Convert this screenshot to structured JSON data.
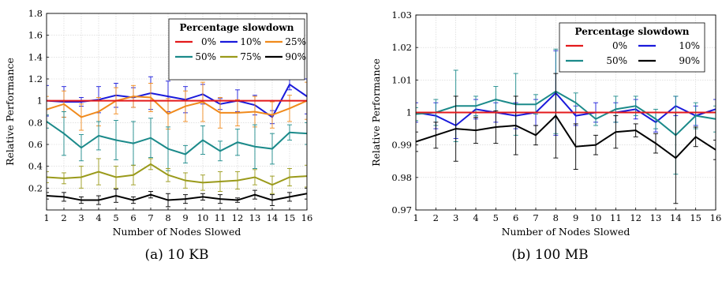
{
  "captions": [
    "(a) 10 KB",
    "(b) 100 MB"
  ],
  "chart_data": [
    {
      "type": "line",
      "xlabel": "Number of Nodes Slowed",
      "ylabel": "Relative Performance",
      "ylim": [
        0,
        1.8
      ],
      "yticks": [
        "0.2",
        "0.4",
        "0.6",
        "0.8",
        "1",
        "1.2",
        "1.4",
        "1.6",
        "1.8"
      ],
      "x": [
        1,
        2,
        3,
        4,
        5,
        6,
        7,
        8,
        9,
        10,
        11,
        12,
        13,
        14,
        15,
        16
      ],
      "legend_title": "Percentage slowdown",
      "legend_position": "top-right",
      "grid": true,
      "series": [
        {
          "name": "0%",
          "color": "#e31a1c",
          "values": [
            1,
            1,
            1,
            1,
            1,
            1,
            1,
            1,
            1,
            1,
            1,
            1,
            1,
            1,
            1,
            1
          ],
          "err": [
            0,
            0,
            0,
            0,
            0,
            0,
            0,
            0,
            0,
            0,
            0,
            0,
            0,
            0,
            0,
            0
          ]
        },
        {
          "name": "10%",
          "color": "#1a1adb",
          "values": [
            1.0,
            0.99,
            0.99,
            1.01,
            1.05,
            1.03,
            1.07,
            1.04,
            1.01,
            1.06,
            0.97,
            1.0,
            0.96,
            0.85,
            1.15,
            1.04
          ],
          "err": [
            0.14,
            0.14,
            0.04,
            0.12,
            0.11,
            0.09,
            0.15,
            0.14,
            0.12,
            0.09,
            0.05,
            0.1,
            0.09,
            0.06,
            0.05,
            0.16
          ]
        },
        {
          "name": "25%",
          "color": "#f08a1c",
          "values": [
            0.92,
            0.97,
            0.85,
            0.9,
            1.0,
            1.04,
            1.03,
            0.88,
            0.95,
            0.99,
            0.89,
            0.89,
            0.9,
            0.87,
            0.93,
            1.0
          ],
          "err": [
            0.12,
            0.12,
            0.12,
            0.13,
            0.12,
            0.1,
            0.13,
            0.14,
            0.14,
            0.18,
            0.14,
            0.12,
            0.14,
            0.12,
            0.12,
            0.17
          ]
        },
        {
          "name": "50%",
          "color": "#1b8a8a",
          "values": [
            0.81,
            0.7,
            0.57,
            0.68,
            0.64,
            0.61,
            0.66,
            0.56,
            0.51,
            0.64,
            0.54,
            0.62,
            0.58,
            0.56,
            0.71,
            0.7
          ],
          "err": [
            0.06,
            0.2,
            0.12,
            0.13,
            0.18,
            0.2,
            0.18,
            0.2,
            0.08,
            0.13,
            0.09,
            0.12,
            0.2,
            0.14,
            0.07,
            0.1
          ]
        },
        {
          "name": "75%",
          "color": "#9a9a1a",
          "values": [
            0.3,
            0.29,
            0.3,
            0.35,
            0.3,
            0.32,
            0.42,
            0.32,
            0.27,
            0.25,
            0.26,
            0.27,
            0.3,
            0.23,
            0.3,
            0.31
          ],
          "err": [
            0.05,
            0.05,
            0.1,
            0.12,
            0.1,
            0.09,
            0.05,
            0.06,
            0.07,
            0.07,
            0.09,
            0.08,
            0.07,
            0.08,
            0.08,
            0.1
          ]
        },
        {
          "name": "90%",
          "color": "#000000",
          "values": [
            0.13,
            0.12,
            0.09,
            0.09,
            0.13,
            0.09,
            0.14,
            0.09,
            0.1,
            0.12,
            0.1,
            0.09,
            0.14,
            0.09,
            0.12,
            0.15
          ],
          "err": [
            0.03,
            0.04,
            0.03,
            0.04,
            0.06,
            0.03,
            0.03,
            0.06,
            0.04,
            0.03,
            0.04,
            0.02,
            0.04,
            0.05,
            0.04,
            0.05
          ]
        }
      ]
    },
    {
      "type": "line",
      "xlabel": "Number of Nodes Slowed",
      "ylabel": "Relative Performance",
      "ylim": [
        0.97,
        1.03
      ],
      "yticks": [
        "0.97",
        "0.98",
        "0.99",
        "1",
        "1.01",
        "1.02",
        "1.03"
      ],
      "x": [
        1,
        2,
        3,
        4,
        5,
        6,
        7,
        8,
        9,
        10,
        11,
        12,
        13,
        14,
        15,
        16
      ],
      "legend_title": "Percentage slowdown",
      "legend_position": "top-right",
      "grid": true,
      "series": [
        {
          "name": "0%",
          "color": "#e31a1c",
          "values": [
            1,
            1,
            1,
            1,
            1,
            1,
            1,
            1,
            1,
            1,
            1,
            1,
            1,
            1,
            1,
            1
          ],
          "err": [
            0,
            0,
            0,
            0,
            0,
            0,
            0,
            0,
            0,
            0,
            0,
            0,
            0,
            0,
            0,
            0
          ]
        },
        {
          "name": "10%",
          "color": "#1a1adb",
          "values": [
            1.0,
            0.999,
            0.996,
            1.001,
            1.0,
            0.999,
            1.0,
            1.006,
            0.999,
            1.0,
            1.0,
            1.001,
            0.997,
            1.002,
            0.999,
            1.001
          ],
          "err": [
            0.003,
            0.004,
            0.004,
            0.003,
            0.003,
            0.004,
            0.004,
            0.013,
            0.003,
            0.003,
            0.003,
            0.003,
            0.003,
            0.003,
            0.003,
            0.003
          ]
        },
        {
          "name": "50%",
          "color": "#1b8a8a",
          "values": [
            0.9995,
            1.0,
            1.002,
            1.002,
            1.004,
            1.0025,
            1.0025,
            1.0065,
            1.003,
            0.998,
            1.001,
            1.002,
            0.998,
            0.993,
            0.999,
            0.998
          ],
          "err": [
            0.002,
            0.004,
            0.011,
            0.003,
            0.004,
            0.0095,
            0.003,
            0.013,
            0.003,
            0.002,
            0.004,
            0.003,
            0.003,
            0.012,
            0.004,
            0.004
          ]
        },
        {
          "name": "90%",
          "color": "#000000",
          "values": [
            0.991,
            0.993,
            0.995,
            0.9945,
            0.9955,
            0.996,
            0.993,
            0.999,
            0.9895,
            0.99,
            0.994,
            0.9945,
            0.9905,
            0.986,
            0.9925,
            0.9885
          ],
          "err": [
            0.003,
            0.004,
            0.01,
            0.004,
            0.005,
            0.009,
            0.003,
            0.013,
            0.007,
            0.003,
            0.005,
            0.002,
            0.003,
            0.014,
            0.003,
            0.003
          ]
        }
      ]
    }
  ]
}
